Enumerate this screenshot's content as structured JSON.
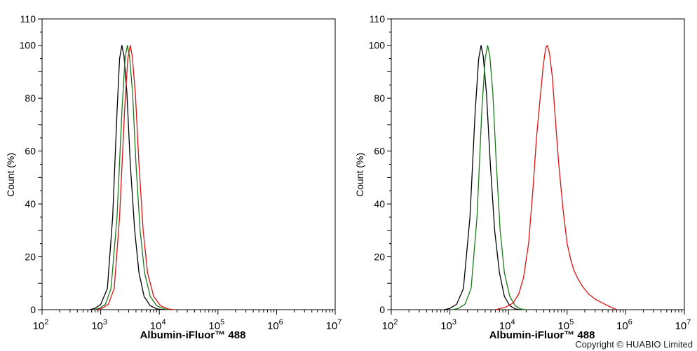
{
  "chart_data": [
    {
      "type": "line",
      "xlabel": "Albumin-iFluor™ 488",
      "ylabel": "Count  (%)",
      "x_scale": "log",
      "xlim": [
        100,
        10000000
      ],
      "ylim": [
        0,
        110
      ],
      "x_ticks": [
        {
          "value": 100,
          "base": "10",
          "exp": "2"
        },
        {
          "value": 1000,
          "base": "10",
          "exp": "3"
        },
        {
          "value": 10000,
          "base": "10",
          "exp": "4"
        },
        {
          "value": 100000,
          "base": "10",
          "exp": "5"
        },
        {
          "value": 1000000,
          "base": "10",
          "exp": "6"
        },
        {
          "value": 10000000,
          "base": "10",
          "exp": "7"
        }
      ],
      "y_ticks": [
        0,
        20,
        40,
        60,
        80,
        100,
        110
      ],
      "grid": false,
      "series": [
        {
          "color": "#000000",
          "x": [
            650,
            800,
            1000,
            1300,
            1600,
            1900,
            2100,
            2300,
            2500,
            2800,
            3200,
            3800,
            4500,
            5500,
            7000,
            9000,
            12000
          ],
          "y": [
            0,
            0.5,
            2,
            8,
            35,
            75,
            95,
            100,
            96,
            82,
            55,
            30,
            14,
            5,
            1.5,
            0.3,
            0
          ]
        },
        {
          "color": "#1a7a1a",
          "x": [
            750,
            950,
            1200,
            1500,
            1900,
            2300,
            2600,
            2850,
            3100,
            3500,
            4000,
            4700,
            5600,
            7000,
            9000,
            12000,
            15000
          ],
          "y": [
            0,
            0.5,
            2,
            8,
            35,
            75,
            95,
            100,
            96,
            82,
            55,
            30,
            14,
            5,
            1.5,
            0.3,
            0
          ]
        },
        {
          "color": "#dd1111",
          "x": [
            850,
            1050,
            1350,
            1700,
            2100,
            2550,
            2900,
            3200,
            3450,
            3900,
            4500,
            5300,
            6300,
            8000,
            10500,
            14000,
            18000
          ],
          "y": [
            0,
            0.5,
            2,
            8,
            35,
            75,
            95,
            100,
            96,
            82,
            55,
            30,
            14,
            5,
            1.5,
            0.3,
            0
          ]
        }
      ]
    },
    {
      "type": "line",
      "xlabel": "Albumin-iFluor™ 488",
      "ylabel": "Count  (%)",
      "x_scale": "log",
      "xlim": [
        100,
        10000000
      ],
      "ylim": [
        0,
        110
      ],
      "x_ticks": [
        {
          "value": 100,
          "base": "10",
          "exp": "2"
        },
        {
          "value": 1000,
          "base": "10",
          "exp": "3"
        },
        {
          "value": 10000,
          "base": "10",
          "exp": "4"
        },
        {
          "value": 100000,
          "base": "10",
          "exp": "5"
        },
        {
          "value": 1000000,
          "base": "10",
          "exp": "6"
        },
        {
          "value": 10000000,
          "base": "10",
          "exp": "7"
        }
      ],
      "y_ticks": [
        0,
        20,
        40,
        60,
        80,
        100,
        110
      ],
      "grid": false,
      "series": [
        {
          "color": "#000000",
          "x": [
            800,
            1000,
            1300,
            1700,
            2200,
            2700,
            3100,
            3400,
            3700,
            4200,
            4900,
            5800,
            7000,
            8500,
            10500,
            13000,
            16000
          ],
          "y": [
            0,
            0.5,
            2,
            8,
            35,
            75,
            95,
            100,
            96,
            82,
            55,
            30,
            14,
            5,
            1.5,
            0.3,
            0
          ]
        },
        {
          "color": "#1a7a1a",
          "x": [
            1100,
            1400,
            1800,
            2300,
            2900,
            3500,
            4000,
            4400,
            4800,
            5400,
            6200,
            7200,
            8500,
            10500,
            13000,
            16000,
            20000
          ],
          "y": [
            0,
            0.5,
            2,
            8,
            35,
            75,
            95,
            100,
            96,
            82,
            55,
            30,
            14,
            5,
            1.5,
            0.3,
            0
          ]
        },
        {
          "color": "#dd1111",
          "x": [
            6000,
            9000,
            12000,
            15000,
            18000,
            22000,
            26000,
            30000,
            34000,
            39000,
            43000,
            46000,
            50000,
            56000,
            63000,
            72000,
            85000,
            100000,
            115000,
            130000,
            150000,
            180000,
            230000,
            300000,
            400000,
            550000,
            700000
          ],
          "y": [
            0,
            1,
            2.5,
            6,
            12,
            25,
            45,
            65,
            78,
            92,
            99,
            100,
            97,
            88,
            72,
            55,
            38,
            25,
            19,
            15,
            12,
            9,
            6,
            4,
            2.5,
            1,
            0
          ]
        }
      ]
    }
  ],
  "copyright": "Copyright © HUABIO Limited"
}
